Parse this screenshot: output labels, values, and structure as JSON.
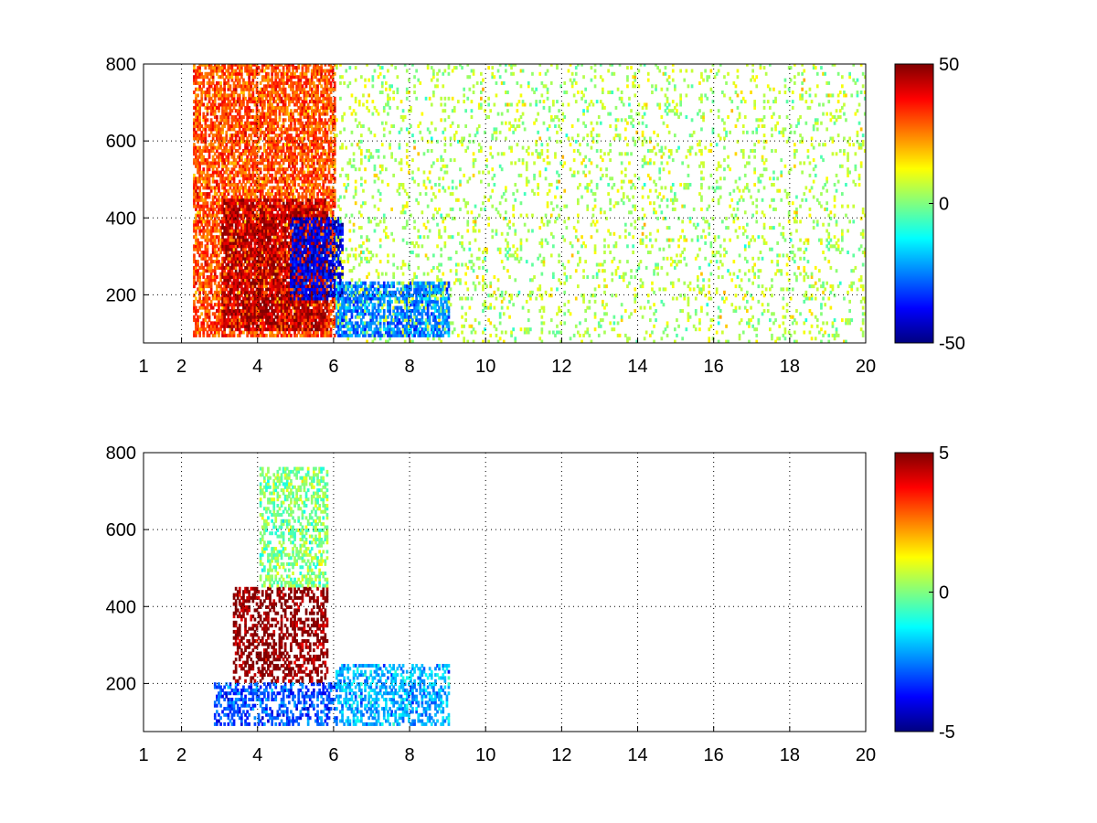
{
  "chart_data": [
    {
      "type": "heatmap",
      "title": "",
      "xlabel": "",
      "ylabel": "",
      "xlim": [
        1,
        20
      ],
      "ylim": [
        75,
        800
      ],
      "xticks": [
        1,
        2,
        4,
        6,
        8,
        10,
        12,
        14,
        16,
        18,
        20
      ],
      "xtick_labels": [
        "1",
        "2",
        "4",
        "6",
        "8",
        "10",
        "12",
        "14",
        "16",
        "18",
        "20"
      ],
      "yticks": [
        200,
        400,
        600,
        800
      ],
      "ytick_labels": [
        "200",
        "400",
        "600",
        "800"
      ],
      "grid": true,
      "colormap": "jet",
      "clim": [
        -50,
        50
      ],
      "colorbar": {
        "placement": "right",
        "tick_values": [
          50,
          0,
          -50
        ],
        "tick_labels": [
          "50",
          "0",
          "-50"
        ]
      },
      "features": [
        {
          "description": "dense band",
          "x_range": [
            2.3,
            6.0
          ],
          "y_range": [
            90,
            800
          ],
          "dominant_value": 30
        },
        {
          "description": "curved high ridge",
          "x_range": [
            3.0,
            5.8
          ],
          "y_range": [
            100,
            450
          ],
          "dominant_value": 45
        },
        {
          "description": "negative patch",
          "x_range": [
            4.8,
            6.2
          ],
          "y_range": [
            180,
            400
          ],
          "dominant_value": -40
        },
        {
          "description": "low band tail",
          "x_range": [
            6.0,
            9.0
          ],
          "y_range": [
            90,
            230
          ],
          "dominant_value": -25
        },
        {
          "description": "sparse speckle",
          "x_range": [
            6.0,
            20.0
          ],
          "y_range": [
            75,
            800
          ],
          "dominant_value": 5
        }
      ]
    },
    {
      "type": "heatmap",
      "title": "",
      "xlabel": "",
      "ylabel": "",
      "xlim": [
        1,
        20
      ],
      "ylim": [
        75,
        800
      ],
      "xticks": [
        1,
        2,
        4,
        6,
        8,
        10,
        12,
        14,
        16,
        18,
        20
      ],
      "xtick_labels": [
        "1",
        "2",
        "4",
        "6",
        "8",
        "10",
        "12",
        "14",
        "16",
        "18",
        "20"
      ],
      "yticks": [
        200,
        400,
        600,
        800
      ],
      "ytick_labels": [
        "200",
        "400",
        "600",
        "800"
      ],
      "grid": true,
      "colormap": "jet",
      "clim": [
        -5,
        5
      ],
      "colorbar": {
        "placement": "right",
        "tick_values": [
          5,
          0,
          -5
        ],
        "tick_labels": [
          "5",
          "0",
          "-5"
        ]
      },
      "features": [
        {
          "description": "curved ridge",
          "x_range": [
            3.3,
            5.8
          ],
          "y_range": [
            200,
            450
          ],
          "dominant_value": 5
        },
        {
          "description": "lower band",
          "x_range": [
            2.8,
            6.0
          ],
          "y_range": [
            90,
            200
          ],
          "dominant_value": -3
        },
        {
          "description": "upper spray",
          "x_range": [
            4.0,
            5.8
          ],
          "y_range": [
            450,
            760
          ],
          "dominant_value": 0
        },
        {
          "description": "tail",
          "x_range": [
            6.0,
            9.0
          ],
          "y_range": [
            90,
            250
          ],
          "dominant_value": -2
        }
      ]
    }
  ]
}
